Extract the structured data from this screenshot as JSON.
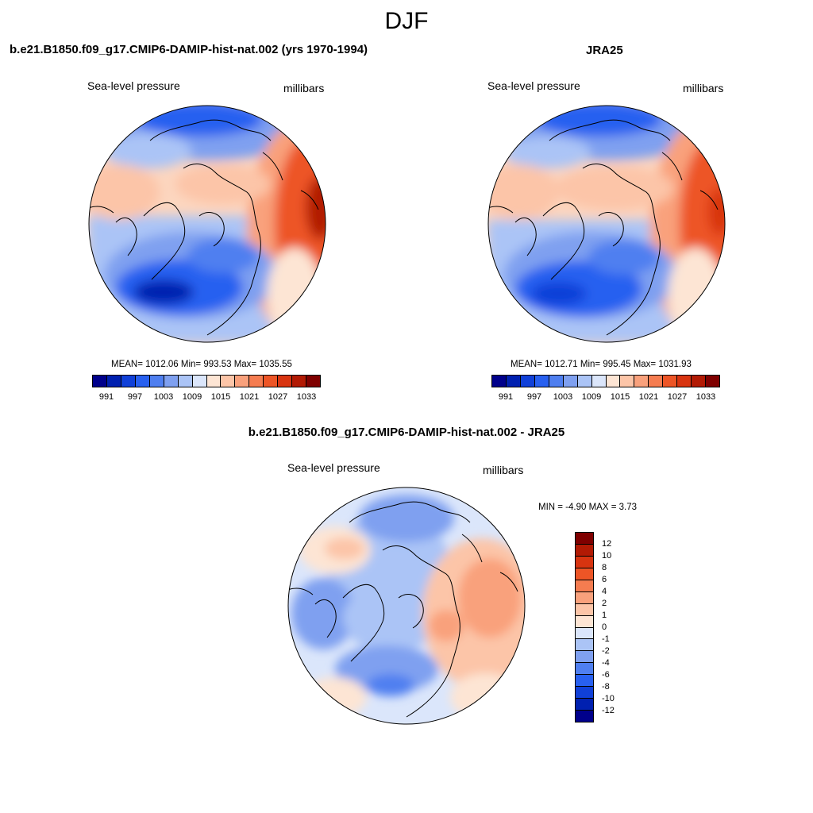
{
  "page_title": "DJF",
  "panels": {
    "model": {
      "title": "b.e21.B1850.f09_g17.CMIP6-DAMIP-hist-nat.002 (yrs 1970-1994)",
      "variable": "Sea-level pressure",
      "units": "millibars",
      "stats": "MEAN= 1012.06  Min= 993.53  Max= 1035.55"
    },
    "obs": {
      "title": "JRA25",
      "variable": "Sea-level pressure",
      "units": "millibars",
      "stats": "MEAN= 1012.71  Min= 995.45  Max= 1031.93"
    },
    "diff": {
      "title": "b.e21.B1850.f09_g17.CMIP6-DAMIP-hist-nat.002 - JRA25",
      "variable": "Sea-level pressure",
      "units": "millibars",
      "stats": "MIN =  -4.90 MAX =   3.73"
    }
  },
  "colorbar_abs": {
    "colors": [
      "#00008b",
      "#0020b0",
      "#1040d8",
      "#2860f0",
      "#4f7ff0",
      "#7fa0f0",
      "#abc4f6",
      "#dbe6fb",
      "#fde5d4",
      "#fcc5a8",
      "#f9a17c",
      "#f57c50",
      "#ed5526",
      "#d83410",
      "#b21a04",
      "#7f0000"
    ],
    "labels": [
      "991",
      "997",
      "1003",
      "1009",
      "1015",
      "1021",
      "1027",
      "1033"
    ]
  },
  "colorbar_diff": {
    "colors": [
      "#7f0000",
      "#b21a04",
      "#d83410",
      "#ed5526",
      "#f57c50",
      "#f9a17c",
      "#fcc5a8",
      "#fde5d4",
      "#dbe6fb",
      "#abc4f6",
      "#7fa0f0",
      "#4f7ff0",
      "#2860f0",
      "#1040d8",
      "#0020b0",
      "#00008b"
    ],
    "labels": [
      "12",
      "10",
      "8",
      "6",
      "4",
      "2",
      "1",
      "0",
      "-1",
      "-2",
      "-4",
      "-6",
      "-8",
      "-10",
      "-12"
    ]
  }
}
